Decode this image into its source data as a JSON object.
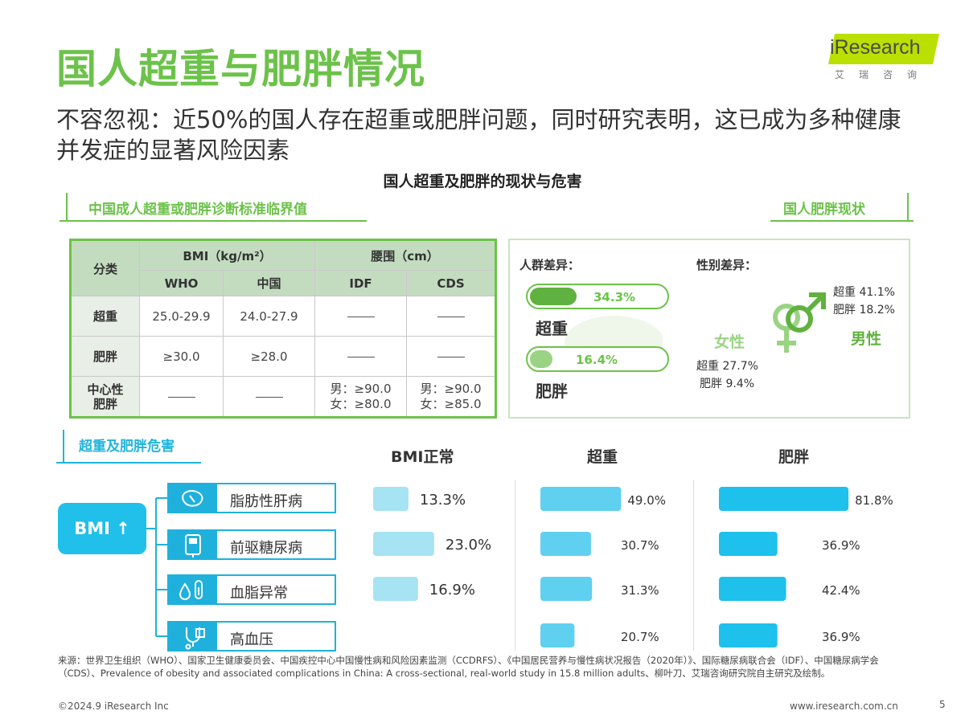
{
  "title": "国人超重与肥胖情况",
  "subtitle": "不容忽视：近50%的国人存在超重或肥胖问题，同时研究表明，这已成为多种健康并发症的显著风险因素",
  "logo": {
    "name": "iResearch",
    "sub": "艾瑞咨询"
  },
  "section_title": "国人超重及肥胖的现状与危害",
  "criteria": {
    "tag": "中国成人超重或肥胖诊断标准临界值",
    "header_group": [
      "分类",
      "BMI（kg/m²）",
      "腰围（cm）"
    ],
    "header_sub": [
      "WHO",
      "中国",
      "IDF",
      "CDS"
    ],
    "rows": [
      {
        "label": "超重",
        "who": "25.0-29.9",
        "cn": "24.0-27.9",
        "idf": "",
        "cds": ""
      },
      {
        "label": "肥胖",
        "who": "≥30.0",
        "cn": "≥28.0",
        "idf": "",
        "cds": ""
      },
      {
        "label": "中心性肥胖",
        "who": "",
        "cn": "",
        "idf": "男：≥90.0\n女：≥80.0",
        "cds": "男：≥90.0\n女：≥85.0"
      }
    ]
  },
  "status": {
    "tag": "国人肥胖现状",
    "group_label": "人群差异：",
    "gender_label": "性别差异：",
    "overweight": {
      "label": "超重",
      "value": "34.3%",
      "fraction": 0.343
    },
    "obese": {
      "label": "肥胖",
      "value": "16.4%",
      "fraction": 0.164
    },
    "female": {
      "label": "女性",
      "overweight": "超重 27.7%",
      "obese": "肥胖 9.4%"
    },
    "male": {
      "label": "男性",
      "overweight": "超重 41.1%",
      "obese": "肥胖 18.2%"
    },
    "colors": {
      "accent": "#6cc24a",
      "fill": "#5fb23f"
    }
  },
  "harm": {
    "tag": "超重及肥胖危害",
    "bmi_label": "BMI ↑",
    "diseases": [
      {
        "label": "脂肪性肝病",
        "icon": "liver-icon"
      },
      {
        "label": "前驱糖尿病",
        "icon": "glucose-meter-icon"
      },
      {
        "label": "血脂异常",
        "icon": "blood-drop-icon"
      },
      {
        "label": "高血压",
        "icon": "stethoscope-icon"
      }
    ]
  },
  "chart_data": {
    "type": "bar",
    "orientation": "horizontal",
    "categories": [
      "脂肪性肝病",
      "前驱糖尿病",
      "血脂异常",
      "高血压"
    ],
    "series": [
      {
        "name": "BMI正常",
        "values": [
          13.3,
          23.0,
          16.9,
          null
        ],
        "labels": [
          "13.3%",
          "23.0%",
          "16.9%",
          ""
        ],
        "color": "#a6e3f3"
      },
      {
        "name": "超重",
        "values": [
          49.0,
          30.7,
          31.3,
          20.7
        ],
        "labels": [
          "49.0%",
          "30.7%",
          "31.3%",
          "20.7%"
        ],
        "color": "#5fd0ef"
      },
      {
        "name": "肥胖",
        "values": [
          81.8,
          36.9,
          42.4,
          36.9
        ],
        "labels": [
          "81.8%",
          "36.9%",
          "42.4%",
          "36.9%"
        ],
        "color": "#1ec0ec"
      }
    ]
  },
  "footer": {
    "source": "来源：世界卫生组织（WHO）、国家卫生健康委员会、中国疾控中心中国慢性病和风险因素监测（CCDRFS）、《中国居民营养与慢性病状况报告（2020年）》、国际糖尿病联合会（IDF）、中国糖尿病学会（CDS）、Prevalence of obesity and associated complications in China: A cross-sectional, real-world study in 15.8 million adults、柳叶刀、艾瑞咨询研究院自主研究及绘制。",
    "copyright": "©2024.9 iResearch Inc",
    "url": "www.iresearch.com.cn",
    "page": "5"
  }
}
